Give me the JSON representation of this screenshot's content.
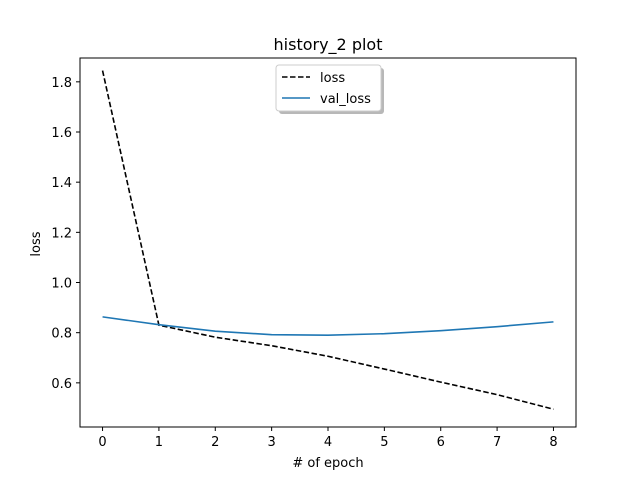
{
  "chart_data": {
    "type": "line",
    "title": "history_2 plot",
    "xlabel": "# of epoch",
    "ylabel": "loss",
    "x": [
      0,
      1,
      2,
      3,
      4,
      5,
      6,
      7,
      8
    ],
    "xlim": [
      -0.4,
      8.4
    ],
    "ylim": [
      0.424,
      1.895
    ],
    "xticks": [
      0,
      1,
      2,
      3,
      4,
      5,
      6,
      7,
      8
    ],
    "xtick_labels": [
      "0",
      "1",
      "2",
      "3",
      "4",
      "5",
      "6",
      "7",
      "8"
    ],
    "yticks": [
      0.6,
      0.8,
      1.0,
      1.2,
      1.4,
      1.6,
      1.8
    ],
    "ytick_labels": [
      "0.6",
      "0.8",
      "1.0",
      "1.2",
      "1.4",
      "1.6",
      "1.8"
    ],
    "grid": false,
    "legend_position": "top-center",
    "series": [
      {
        "name": "loss",
        "color": "#000000",
        "style": "dashed",
        "values": [
          1.845,
          0.83,
          0.782,
          0.748,
          0.706,
          0.655,
          0.603,
          0.553,
          0.495
        ]
      },
      {
        "name": "val_loss",
        "color": "#1f77b4",
        "style": "solid",
        "values": [
          0.863,
          0.832,
          0.806,
          0.792,
          0.79,
          0.796,
          0.808,
          0.824,
          0.843
        ]
      }
    ]
  }
}
